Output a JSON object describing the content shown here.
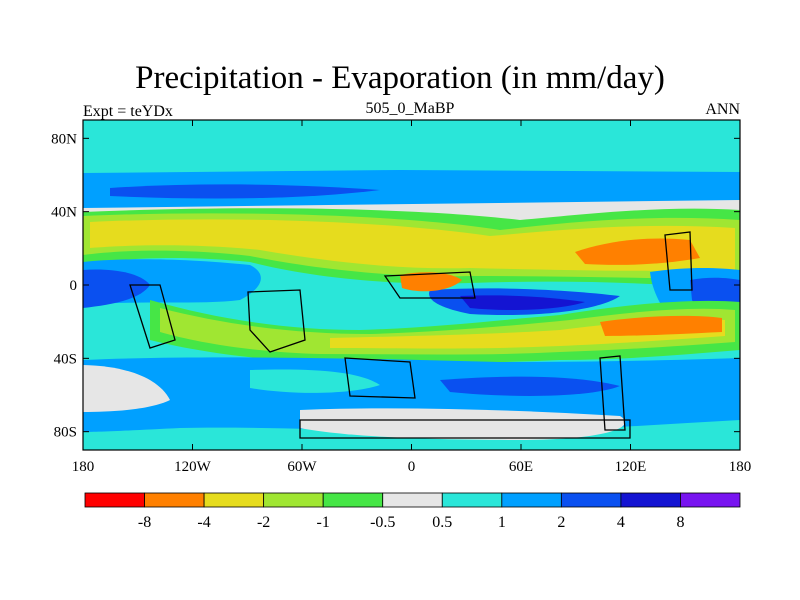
{
  "title": "Precipitation - Evaporation (in mm/day)",
  "subtitle_left": "Expt = teYDx",
  "subtitle_center": "505_0_MaBP",
  "subtitle_right": "ANN",
  "axes": {
    "x_ticks": [
      {
        "value": -180,
        "label": "180"
      },
      {
        "value": -120,
        "label": "120W"
      },
      {
        "value": -60,
        "label": "60W"
      },
      {
        "value": 0,
        "label": "0"
      },
      {
        "value": 60,
        "label": "60E"
      },
      {
        "value": 120,
        "label": "120E"
      },
      {
        "value": 180,
        "label": "180"
      }
    ],
    "y_ticks": [
      {
        "value": 80,
        "label": "80N"
      },
      {
        "value": 40,
        "label": "40N"
      },
      {
        "value": 0,
        "label": "0"
      },
      {
        "value": -40,
        "label": "40S"
      },
      {
        "value": -80,
        "label": "80S"
      }
    ],
    "lon_range": [
      -180,
      180
    ],
    "lat_range": [
      -90,
      90
    ]
  },
  "colorbar": {
    "colors": [
      "#ff0000",
      "#ff8000",
      "#e6dc1e",
      "#a0e632",
      "#46e646",
      "#e6e6e6",
      "#2ae6d9",
      "#00a0ff",
      "#0a50f0",
      "#1414d2",
      "#7814f0"
    ],
    "labels": [
      "-8",
      "-4",
      "-2",
      "-1",
      "-0.5",
      "0.5",
      "1",
      "2",
      "4",
      "8"
    ]
  }
}
